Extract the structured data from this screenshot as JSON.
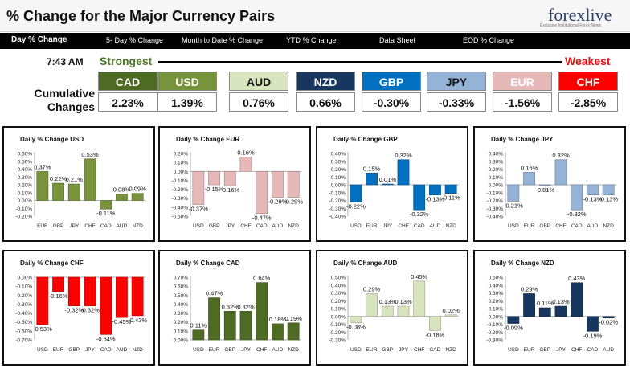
{
  "header": {
    "title": "% Change for the Major Currency Pairs"
  },
  "logo": {
    "text": "forexlive",
    "tagline": "Exclusive Institutional Forex News"
  },
  "nav": [
    "Day % Change",
    "5- Day % Change",
    "Month to Date % Change",
    "YTD % Change",
    "Data Sheet",
    "EOD % Change"
  ],
  "summary": {
    "time": "7:43 AM",
    "strongest_label": "Strongest",
    "weakest_label": "Weakest",
    "cumulative_label": "Cumulative Changes",
    "currencies": [
      {
        "code": "CAD",
        "value": "2.23%",
        "bg": "#4e6b23",
        "fg": "#ffffff"
      },
      {
        "code": "USD",
        "value": "1.39%",
        "bg": "#77933c",
        "fg": "#ffffff"
      },
      {
        "code": "AUD",
        "value": "0.76%",
        "bg": "#d7e4bd",
        "fg": "#111111"
      },
      {
        "code": "NZD",
        "value": "0.66%",
        "bg": "#17375e",
        "fg": "#ffffff"
      },
      {
        "code": "GBP",
        "value": "-0.30%",
        "bg": "#0070c0",
        "fg": "#ffffff"
      },
      {
        "code": "JPY",
        "value": "-0.33%",
        "bg": "#95b3d7",
        "fg": "#111111"
      },
      {
        "code": "EUR",
        "value": "-1.56%",
        "bg": "#e6b9b8",
        "fg": "#ffffff"
      },
      {
        "code": "CHF",
        "value": "-2.85%",
        "bg": "#ff0000",
        "fg": "#ffffff"
      }
    ]
  },
  "chart_data": [
    {
      "type": "bar",
      "title": "Daily % Change USD",
      "color": "#77933c",
      "categories": [
        "EUR",
        "GBP",
        "JPY",
        "CHF",
        "CAD",
        "AUD",
        "NZD"
      ],
      "values": [
        0.37,
        0.22,
        0.21,
        0.53,
        -0.11,
        0.08,
        0.09
      ],
      "labels": [
        "0.37%",
        "0.22%",
        "0.21%",
        "0.53%",
        "-0.11%",
        "0.08%",
        "0.09%"
      ],
      "ylim": [
        -0.2,
        0.6
      ],
      "ticks": [
        "-0.20%",
        "-0.10%",
        "0.00%",
        "0.10%",
        "0.20%",
        "0.30%",
        "0.40%",
        "0.50%",
        "0.60%"
      ]
    },
    {
      "type": "bar",
      "title": "Daily % Change EUR",
      "color": "#e6b9b8",
      "categories": [
        "USD",
        "GBP",
        "JPY",
        "CHF",
        "CAD",
        "AUD",
        "NZD"
      ],
      "values": [
        -0.37,
        -0.15,
        -0.16,
        0.16,
        -0.47,
        -0.29,
        -0.29
      ],
      "labels": [
        "-0.37%",
        "-0.15%",
        "-0.16%",
        "0.16%",
        "-0.47%",
        "-0.29%",
        "-0.29%"
      ],
      "ylim": [
        -0.5,
        0.2
      ],
      "ticks": [
        "-0.50%",
        "-0.40%",
        "-0.30%",
        "-0.20%",
        "-0.10%",
        "0.00%",
        "0.10%",
        "0.20%"
      ]
    },
    {
      "type": "bar",
      "title": "Daily % Change GBP",
      "color": "#0070c0",
      "categories": [
        "USD",
        "EUR",
        "JPY",
        "CHF",
        "CAD",
        "AUD",
        "NZD"
      ],
      "values": [
        -0.22,
        0.15,
        0.01,
        0.32,
        -0.32,
        -0.13,
        -0.11
      ],
      "labels": [
        "-0.22%",
        "0.15%",
        "0.01%",
        "0.32%",
        "-0.32%",
        "-0.13%",
        "-0.11%"
      ],
      "ylim": [
        -0.4,
        0.4
      ],
      "ticks": [
        "-0.40%",
        "-0.30%",
        "-0.20%",
        "-0.10%",
        "0.00%",
        "0.10%",
        "0.20%",
        "0.30%",
        "0.40%"
      ]
    },
    {
      "type": "bar",
      "title": "Daily % Change JPY",
      "color": "#95b3d7",
      "categories": [
        "USD",
        "EUR",
        "GBP",
        "CHF",
        "CAD",
        "AUD",
        "NZD"
      ],
      "values": [
        -0.21,
        0.16,
        -0.01,
        0.32,
        -0.32,
        -0.13,
        -0.13
      ],
      "labels": [
        "-0.21%",
        "0.16%",
        "-0.01%",
        "0.32%",
        "-0.32%",
        "-0.13%",
        "-0.13%"
      ],
      "ylim": [
        -0.4,
        0.4
      ],
      "ticks": [
        "-0.40%",
        "-0.30%",
        "-0.20%",
        "-0.10%",
        "0.00%",
        "0.10%",
        "0.20%",
        "0.30%",
        "0.40%"
      ]
    },
    {
      "type": "bar",
      "title": "Daily % Change CHF",
      "color": "#ff0000",
      "categories": [
        "USD",
        "EUR",
        "GBP",
        "JPY",
        "CAD",
        "AUD",
        "NZD"
      ],
      "values": [
        -0.53,
        -0.16,
        -0.32,
        -0.32,
        -0.64,
        -0.45,
        -0.43
      ],
      "labels": [
        "-0.53%",
        "-0.16%",
        "-0.32%",
        "-0.32%",
        "-0.64%",
        "-0.45%",
        "-0.43%"
      ],
      "ylim": [
        -0.7,
        0.0
      ],
      "ticks": [
        "-0.70%",
        "-0.60%",
        "-0.50%",
        "-0.40%",
        "-0.30%",
        "-0.20%",
        "-0.10%",
        "0.00%"
      ]
    },
    {
      "type": "bar",
      "title": "Daily % Change CAD",
      "color": "#4e6b23",
      "categories": [
        "USD",
        "EUR",
        "GBP",
        "JPY",
        "CHF",
        "AUD",
        "NZD"
      ],
      "values": [
        0.11,
        0.47,
        0.32,
        0.32,
        0.64,
        0.18,
        0.19
      ],
      "labels": [
        "0.11%",
        "0.47%",
        "0.32%",
        "0.32%",
        "0.64%",
        "0.18%",
        "0.19%"
      ],
      "ylim": [
        0.0,
        0.7
      ],
      "ticks": [
        "0.00%",
        "0.10%",
        "0.20%",
        "0.30%",
        "0.40%",
        "0.50%",
        "0.60%",
        "0.70%"
      ]
    },
    {
      "type": "bar",
      "title": "Daily % Change AUD",
      "color": "#d7e4bd",
      "categories": [
        "USD",
        "EUR",
        "GBP",
        "JPY",
        "CHF",
        "CAD",
        "NZD"
      ],
      "values": [
        -0.08,
        0.29,
        0.13,
        0.13,
        0.45,
        -0.18,
        0.02
      ],
      "labels": [
        "-0.08%",
        "0.29%",
        "0.13%",
        "0.13%",
        "0.45%",
        "-0.18%",
        "0.02%"
      ],
      "ylim": [
        -0.3,
        0.5
      ],
      "ticks": [
        "-0.30%",
        "-0.20%",
        "-0.10%",
        "0.00%",
        "0.10%",
        "0.20%",
        "0.30%",
        "0.40%",
        "0.50%"
      ]
    },
    {
      "type": "bar",
      "title": "Daily % Change NZD",
      "color": "#17375e",
      "categories": [
        "USD",
        "EUR",
        "GBP",
        "JPY",
        "CHF",
        "CAD",
        "AUD"
      ],
      "values": [
        -0.09,
        0.29,
        0.11,
        0.13,
        0.43,
        -0.19,
        -0.02
      ],
      "labels": [
        "-0.09%",
        "0.29%",
        "0.11%",
        "0.13%",
        "0.43%",
        "-0.19%",
        "-0.02%"
      ],
      "ylim": [
        -0.3,
        0.5
      ],
      "ticks": [
        "-0.30%",
        "-0.20%",
        "-0.10%",
        "0.00%",
        "0.10%",
        "0.20%",
        "0.30%",
        "0.40%",
        "0.50%"
      ]
    }
  ]
}
